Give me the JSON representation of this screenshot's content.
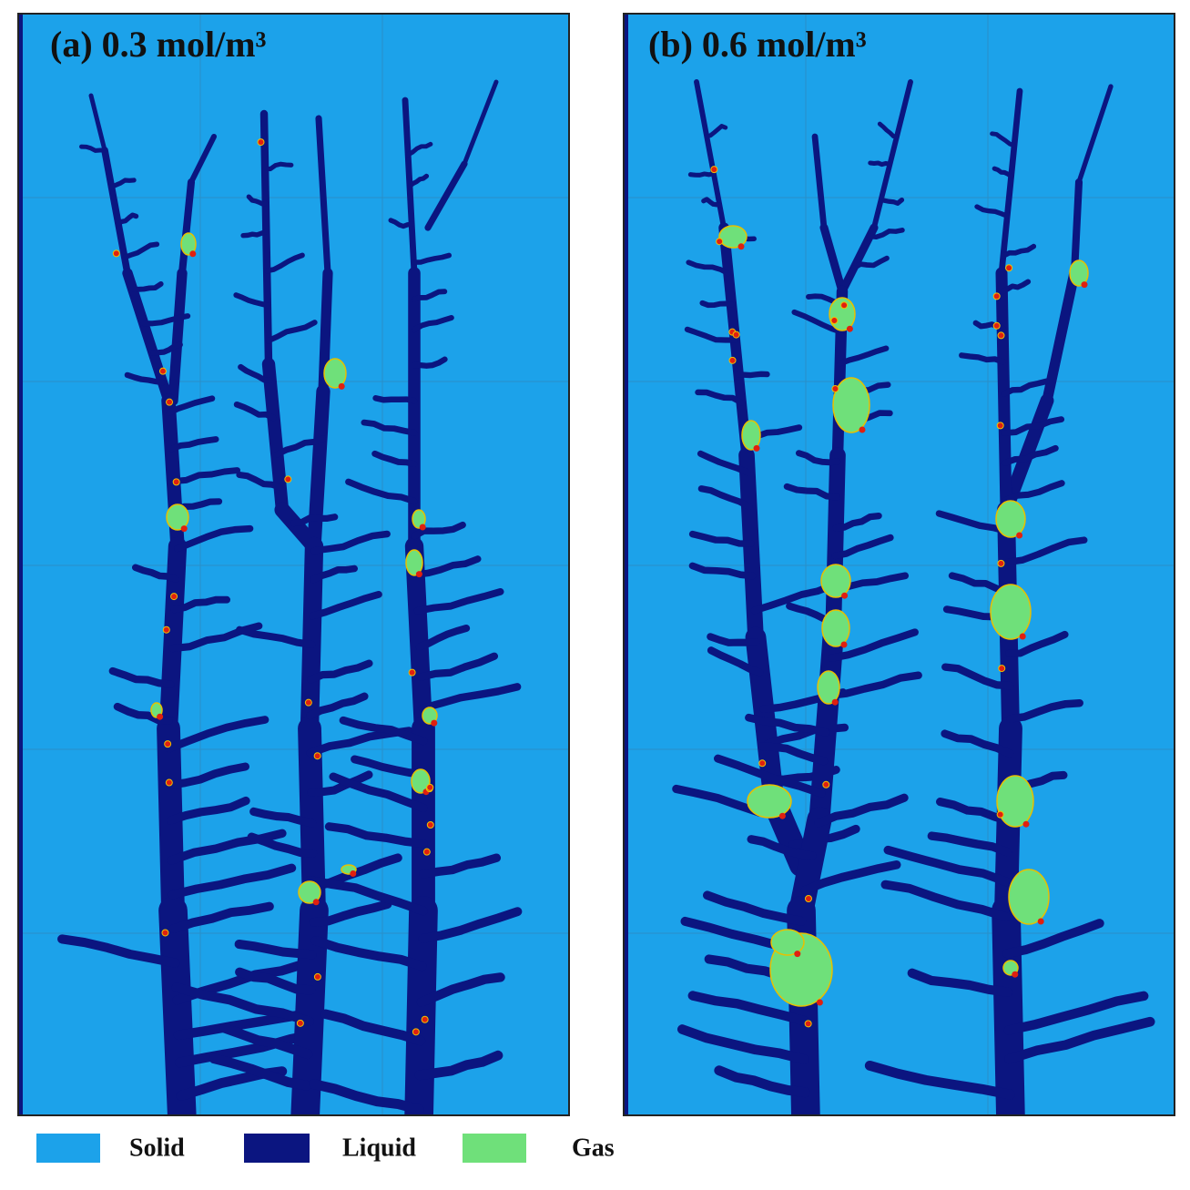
{
  "panels": [
    {
      "title": "(a) 0.3 mol/m³"
    },
    {
      "title": "(b) 0.6 mol/m³"
    }
  ],
  "legend": [
    {
      "label": "Solid",
      "color": "#1ca2ea"
    },
    {
      "label": "Liquid",
      "color": "#0b1580"
    },
    {
      "label": "Gas",
      "color": "#6fe07a"
    }
  ]
}
